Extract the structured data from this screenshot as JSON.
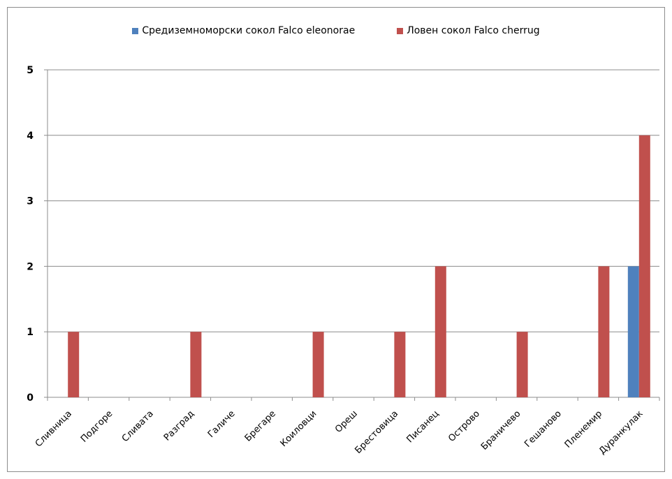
{
  "chart_data": {
    "type": "bar",
    "title": "",
    "xlabel": "",
    "ylabel": "",
    "ylim": [
      0,
      5
    ],
    "yticks": [
      0,
      1,
      2,
      3,
      4,
      5
    ],
    "grid": "horizontal",
    "legend_position": "top",
    "categories": [
      "Сливница",
      "Подгоре",
      "Сливата",
      "Разград",
      "Галиче",
      "Брегаре",
      "Коиловци",
      "Ореш",
      "Брестовица",
      "Писанец",
      "Острово",
      "Браничево",
      "Гешаново",
      "Пленемир",
      "Дуранкулак"
    ],
    "series": [
      {
        "name": "Средиземноморски сокол Falco eleonorae",
        "color": "#4f81bd",
        "values": [
          0,
          0,
          0,
          0,
          0,
          0,
          0,
          0,
          0,
          0,
          0,
          0,
          0,
          0,
          2
        ]
      },
      {
        "name": "Ловен сокол Falco cherrug",
        "color": "#c0504d",
        "values": [
          1,
          0,
          0,
          1,
          0,
          0,
          1,
          0,
          1,
          2,
          0,
          1,
          0,
          2,
          4
        ]
      }
    ]
  }
}
